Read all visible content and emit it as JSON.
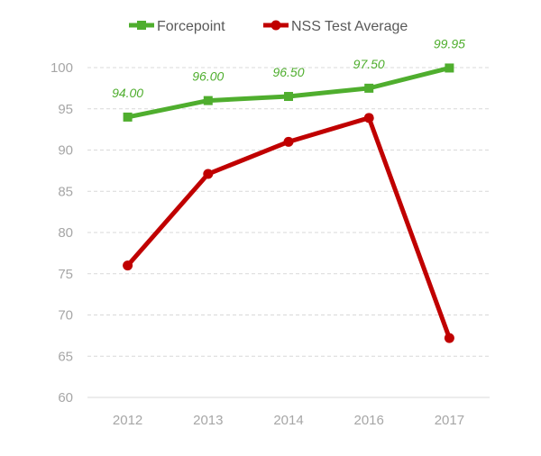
{
  "chart_data": {
    "type": "line",
    "categories": [
      "2012",
      "2013",
      "2014",
      "2016",
      "2017"
    ],
    "series": [
      {
        "name": "Forcepoint",
        "values": [
          94.0,
          96.0,
          96.5,
          97.5,
          99.95
        ],
        "data_labels": [
          "94.00",
          "96.00",
          "96.50",
          "97.50",
          "99.95"
        ],
        "color": "#4fae2e",
        "marker": "square"
      },
      {
        "name": "NSS Test Average",
        "values": [
          76,
          87.1,
          91,
          93.9,
          67.2
        ],
        "color": "#c00000",
        "marker": "circle"
      }
    ],
    "ylim": [
      60,
      100
    ],
    "yticks": [
      "60",
      "65",
      "70",
      "75",
      "80",
      "85",
      "90",
      "95",
      "100"
    ],
    "grid": true,
    "legend_position": "top"
  }
}
